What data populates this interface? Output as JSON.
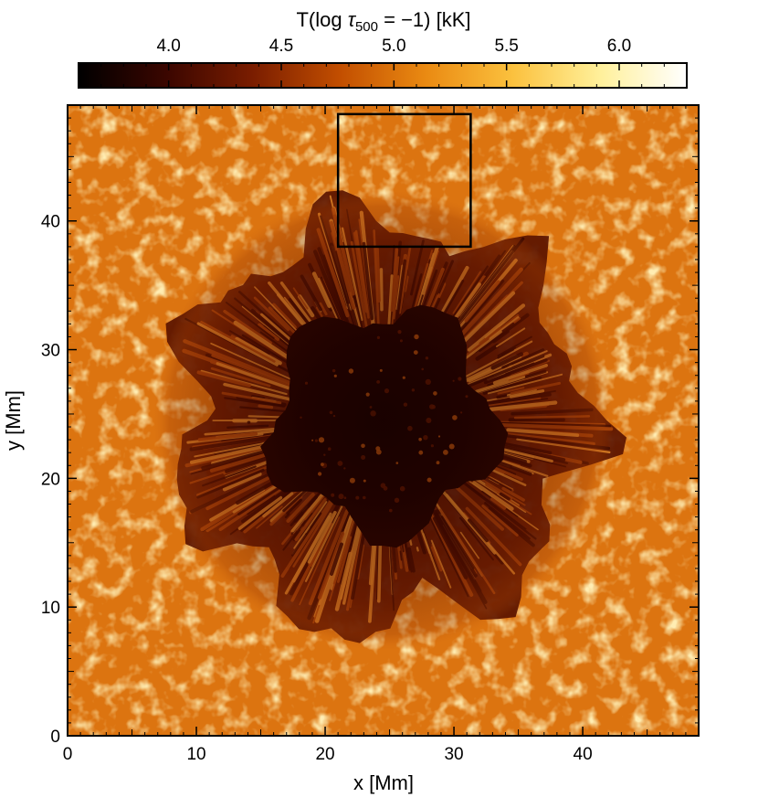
{
  "chart_data": {
    "type": "heatmap",
    "title": "",
    "xlabel": "x [Mm]",
    "ylabel": "y [Mm]",
    "xlim": [
      0,
      49
    ],
    "ylim": [
      0,
      49
    ],
    "x_ticks": [
      0,
      10,
      20,
      30,
      40
    ],
    "y_ticks": [
      0,
      10,
      20,
      30,
      40
    ],
    "grid": false,
    "colorbar": {
      "title_prefix": "T(log ",
      "title_tau": "τ",
      "title_sub": "500",
      "title_suffix": " = −1) [kK]",
      "range": [
        3.6,
        6.3
      ],
      "ticks": [
        4.0,
        4.5,
        5.0,
        5.5,
        6.0
      ],
      "tick_labels": [
        "4.0",
        "4.5",
        "5.0",
        "5.5",
        "6.0"
      ],
      "colormap": "solar-afmhot",
      "stops": [
        "#000000",
        "#3a0600",
        "#7a1d00",
        "#c24e00",
        "#ea8a12",
        "#fbc13e",
        "#fff09a",
        "#ffffff"
      ]
    },
    "features": {
      "sunspot_center": [
        24.5,
        24.5
      ],
      "umbra_radius": 9,
      "penumbra_radius": 17,
      "umbra_temp": 4.0,
      "penumbra_temp": 4.4,
      "quiet_temp": 5.1
    },
    "highlight_box": {
      "x0": 21,
      "x1": 31.3,
      "y0": 38,
      "y1": 48.3
    }
  }
}
